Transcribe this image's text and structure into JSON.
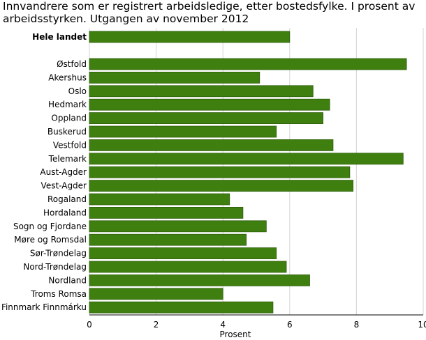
{
  "chart_data": {
    "type": "bar",
    "orientation": "horizontal",
    "title": "Innvandrere som er registrert arbeidsledige, etter bostedsfylke. I prosent av arbeidsstyrken. Utgangen av november 2012",
    "xlabel": "Prosent",
    "ylabel": "",
    "xlim": [
      0,
      10
    ],
    "xticks": [
      "0",
      "2",
      "4",
      "6",
      "8",
      "10"
    ],
    "grid": true,
    "legend": "none",
    "bar_color": "#3f7f0f",
    "bar_edge_color": "#2e5e0a",
    "categories": [
      "Hele landet",
      "Østfold",
      "Akershus",
      "Oslo",
      "Hedmark",
      "Oppland",
      "Buskerud",
      "Vestfold",
      "Telemark",
      "Aust-Agder",
      "Vest-Agder",
      "Rogaland",
      "Hordaland",
      "Sogn og Fjordane",
      "Møre og Romsdal",
      "Sør-Trøndelag",
      "Nord-Trøndelag",
      "Nordland",
      "Troms Romsa",
      "Finnmark Finnmárku"
    ],
    "values": [
      6.0,
      9.5,
      5.1,
      6.7,
      7.2,
      7.0,
      5.6,
      7.3,
      9.4,
      7.8,
      7.9,
      4.2,
      4.6,
      5.3,
      4.7,
      5.6,
      5.9,
      6.6,
      4.0,
      5.5
    ],
    "emphasized_categories": [
      "Hele landet"
    ]
  }
}
